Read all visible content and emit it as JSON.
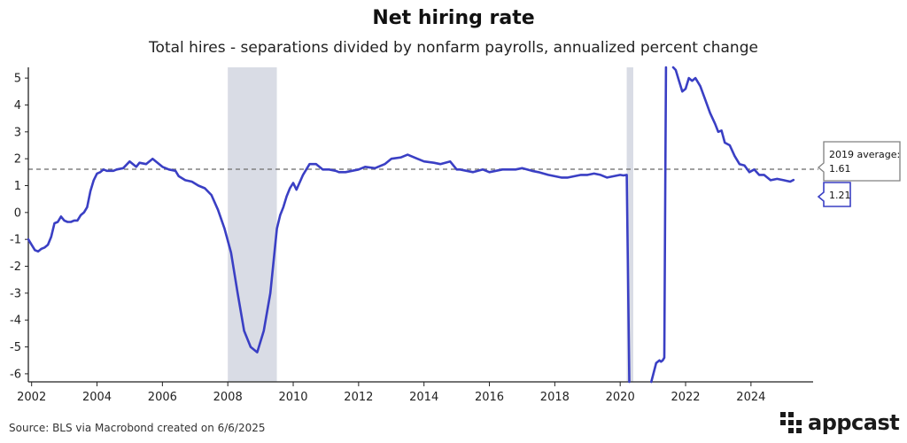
{
  "title": "Net hiring rate",
  "subtitle": "Total hires - separations divided by nonfarm payrolls, annualized percent change",
  "source": "Source: BLS via Macrobond created on 6/6/2025",
  "logo_text": "appcast",
  "colors": {
    "line": "#3a3fc4",
    "recession": "#d9dce5",
    "reference": "#808080",
    "logo": "#1a1a1a"
  },
  "reference_label_line1": "2019 average:",
  "reference_label_line2": "1.61",
  "last_value_label": "1.21",
  "chart_data": {
    "type": "line",
    "title": "Net hiring rate",
    "subtitle": "Total hires - separations divided by nonfarm payrolls, annualized percent change",
    "xlabel": "",
    "ylabel": "",
    "xlim": [
      2001.9,
      2025.9
    ],
    "ylim": [
      -6.3,
      5.4
    ],
    "x_ticks": [
      2002,
      2004,
      2006,
      2008,
      2010,
      2012,
      2014,
      2016,
      2018,
      2020,
      2022,
      2024
    ],
    "y_ticks": [
      5,
      4,
      3,
      2,
      1,
      0,
      -1,
      -2,
      -3,
      -4,
      -5,
      -6
    ],
    "grid": false,
    "recessions": [
      [
        2008.0,
        2009.5
      ],
      [
        2020.2,
        2020.4
      ]
    ],
    "reference_line": {
      "value": 1.61,
      "label": "2019 average: 1.61"
    },
    "last_value": 1.21,
    "series": [
      {
        "x": [
          2001.9,
          2002.0,
          2002.1,
          2002.2,
          2002.3,
          2002.4,
          2002.5,
          2002.6,
          2002.7,
          2002.8,
          2002.9,
          2003.0,
          2003.1,
          2003.2,
          2003.3,
          2003.4,
          2003.5,
          2003.6,
          2003.7,
          2003.8,
          2003.9,
          2004.0,
          2004.1,
          2004.2,
          2004.3,
          2004.4,
          2004.5,
          2004.6,
          2004.8,
          2005.0,
          2005.2,
          2005.3,
          2005.5,
          2005.7,
          2005.8,
          2006.0,
          2006.2,
          2006.4,
          2006.5,
          2006.7,
          2006.9,
          2007.1,
          2007.3,
          2007.5,
          2007.7,
          2007.9,
          2008.1,
          2008.3,
          2008.5,
          2008.7,
          2008.9,
          2009.1,
          2009.3,
          2009.4,
          2009.5,
          2009.6,
          2009.7,
          2009.8,
          2009.9,
          2010.0,
          2010.1,
          2010.3,
          2010.5,
          2010.7,
          2010.9,
          2011.1,
          2011.3,
          2011.4,
          2011.6,
          2011.8,
          2012.0,
          2012.2,
          2012.5,
          2012.8,
          2013.0,
          2013.3,
          2013.5,
          2013.8,
          2014.0,
          2014.3,
          2014.5,
          2014.8,
          2015.0,
          2015.1,
          2015.3,
          2015.5,
          2015.8,
          2016.0,
          2016.2,
          2016.4,
          2016.6,
          2016.8,
          2017.0,
          2017.3,
          2017.5,
          2017.8,
          2018.0,
          2018.2,
          2018.4,
          2018.6,
          2018.8,
          2019.0,
          2019.2,
          2019.4,
          2019.6,
          2019.8,
          2020.0,
          2020.1,
          2020.2,
          2020.28
        ],
        "y": [
          -1.0,
          -1.2,
          -1.4,
          -1.45,
          -1.35,
          -1.3,
          -1.2,
          -0.9,
          -0.4,
          -0.35,
          -0.15,
          -0.3,
          -0.35,
          -0.35,
          -0.3,
          -0.3,
          -0.1,
          0.0,
          0.2,
          0.8,
          1.2,
          1.45,
          1.5,
          1.6,
          1.55,
          1.55,
          1.55,
          1.6,
          1.65,
          1.9,
          1.7,
          1.85,
          1.8,
          2.0,
          1.9,
          1.7,
          1.6,
          1.55,
          1.35,
          1.2,
          1.15,
          1.0,
          0.9,
          0.65,
          0.1,
          -0.6,
          -1.5,
          -3.0,
          -4.4,
          -5.0,
          -5.2,
          -4.4,
          -3.0,
          -1.8,
          -0.6,
          -0.1,
          0.2,
          0.6,
          0.9,
          1.1,
          0.85,
          1.4,
          1.8,
          1.8,
          1.6,
          1.6,
          1.55,
          1.5,
          1.5,
          1.55,
          1.6,
          1.7,
          1.65,
          1.8,
          2.0,
          2.05,
          2.15,
          2.0,
          1.9,
          1.85,
          1.8,
          1.9,
          1.6,
          1.6,
          1.55,
          1.5,
          1.6,
          1.5,
          1.55,
          1.6,
          1.6,
          1.6,
          1.65,
          1.55,
          1.5,
          1.4,
          1.35,
          1.3,
          1.3,
          1.35,
          1.4,
          1.4,
          1.45,
          1.4,
          1.3,
          1.35,
          1.4,
          1.38,
          1.4,
          -6.3
        ]
      },
      {
        "x": [
          2020.95,
          2021.1,
          2021.2,
          2021.25,
          2021.3,
          2021.35,
          2021.38,
          2021.4
        ],
        "y": [
          -6.3,
          -5.6,
          -5.5,
          -5.55,
          -5.5,
          -5.4,
          1.0,
          5.4
        ]
      },
      {
        "x": [
          2021.62,
          2021.7,
          2021.8,
          2021.9,
          2022.0,
          2022.1,
          2022.2,
          2022.3,
          2022.45,
          2022.6,
          2022.75,
          2022.9,
          2023.0,
          2023.1,
          2023.2,
          2023.35,
          2023.5,
          2023.65,
          2023.8,
          2023.95,
          2024.1,
          2024.25,
          2024.4,
          2024.6,
          2024.8,
          2025.0,
          2025.2,
          2025.3
        ],
        "y": [
          5.4,
          5.3,
          4.9,
          4.5,
          4.6,
          5.0,
          4.9,
          5.0,
          4.7,
          4.2,
          3.7,
          3.3,
          3.0,
          3.05,
          2.6,
          2.5,
          2.1,
          1.8,
          1.75,
          1.5,
          1.6,
          1.4,
          1.4,
          1.2,
          1.25,
          1.2,
          1.15,
          1.21
        ]
      }
    ]
  }
}
